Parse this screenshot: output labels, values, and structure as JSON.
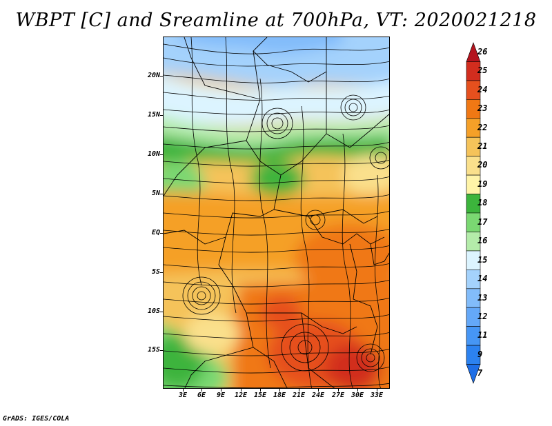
{
  "title": "WBPT [C] and Sreamline at 700hPa, VT: 2020021218",
  "credit": "GrADS: IGES/COLA",
  "lat_labels": [
    "20N",
    "15N",
    "10N",
    "5N",
    "EQ",
    "5S",
    "10S",
    "15S"
  ],
  "lon_labels": [
    "3E",
    "6E",
    "9E",
    "12E",
    "15E",
    "18E",
    "21E",
    "24E",
    "27E",
    "30E",
    "33E"
  ],
  "colorbar": {
    "labels": [
      "7",
      "9",
      "11",
      "12",
      "13",
      "14",
      "15",
      "16",
      "17",
      "18",
      "19",
      "20",
      "21",
      "22",
      "23",
      "24",
      "25",
      "26"
    ],
    "colors": [
      "#1e6ee6",
      "#2c82f0",
      "#4696f5",
      "#64a8f8",
      "#82bcfa",
      "#a4d2fc",
      "#dcf4ff",
      "#b4ecaa",
      "#7ad872",
      "#3cb43c",
      "#fff4a8",
      "#fae08c",
      "#f5c35a",
      "#f5a028",
      "#f07814",
      "#e6501e",
      "#d22d1e",
      "#b4141e"
    ]
  }
}
